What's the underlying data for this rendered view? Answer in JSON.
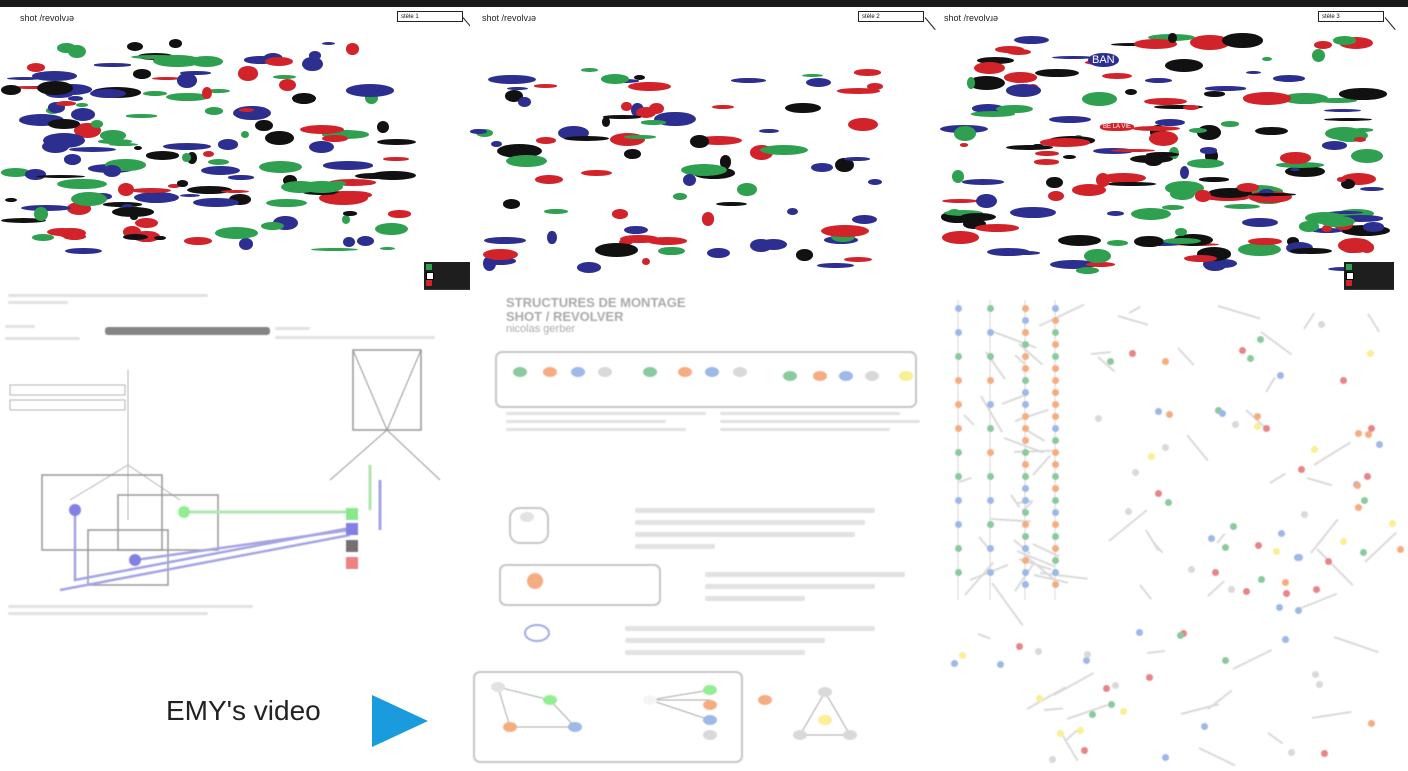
{
  "panels": [
    {
      "title": "shot /revolvɹǝ",
      "stele": "stèle 1"
    },
    {
      "title": "shot /revolvɹǝ",
      "stele": "stèle 2"
    },
    {
      "title": "shot /revolvɹǝ",
      "stele": "stèle 3"
    }
  ],
  "colors": {
    "green": "#2ea04f",
    "blue": "#2c2f8f",
    "red": "#d2232a",
    "black": "#111111",
    "orange": "#f06a1c",
    "lightblue": "#4f7fd6"
  },
  "overlay_words": {
    "a": "BAN",
    "b": "BE LA VIE"
  },
  "middle_heading": {
    "l1": "STRUCTURES DE MONTAGE",
    "l2": "SHOT / REVOLVER",
    "l3": "nicolas gerber"
  },
  "video": {
    "label": "EMY's video",
    "icon": "play-icon"
  }
}
